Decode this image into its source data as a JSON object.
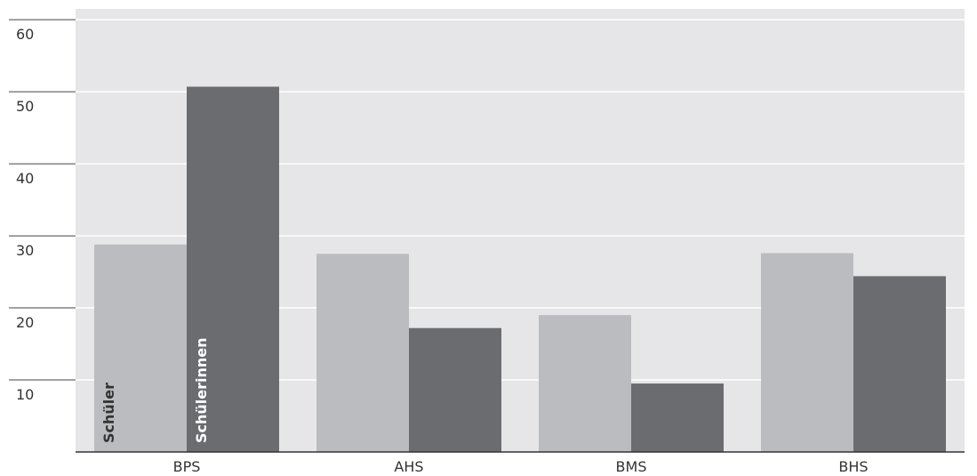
{
  "chart_data": {
    "type": "bar",
    "title": "",
    "xlabel": "",
    "ylabel": "",
    "categories": [
      "BPS",
      "AHS",
      "BMS",
      "BHS"
    ],
    "series": [
      {
        "name": "Schüler",
        "values": [
          28.8,
          27.5,
          19.0,
          27.6
        ],
        "color": "#bbbcc0",
        "label_color": "#333333"
      },
      {
        "name": "Schülerinnen",
        "values": [
          50.7,
          17.2,
          9.5,
          24.4
        ],
        "color": "#6b6c70",
        "label_color": "#ffffff"
      }
    ],
    "yticks": [
      10,
      20,
      30,
      40,
      50,
      60
    ],
    "ylim": [
      0,
      61.5
    ],
    "grid": true,
    "plot_background": "#e6e6e8"
  }
}
